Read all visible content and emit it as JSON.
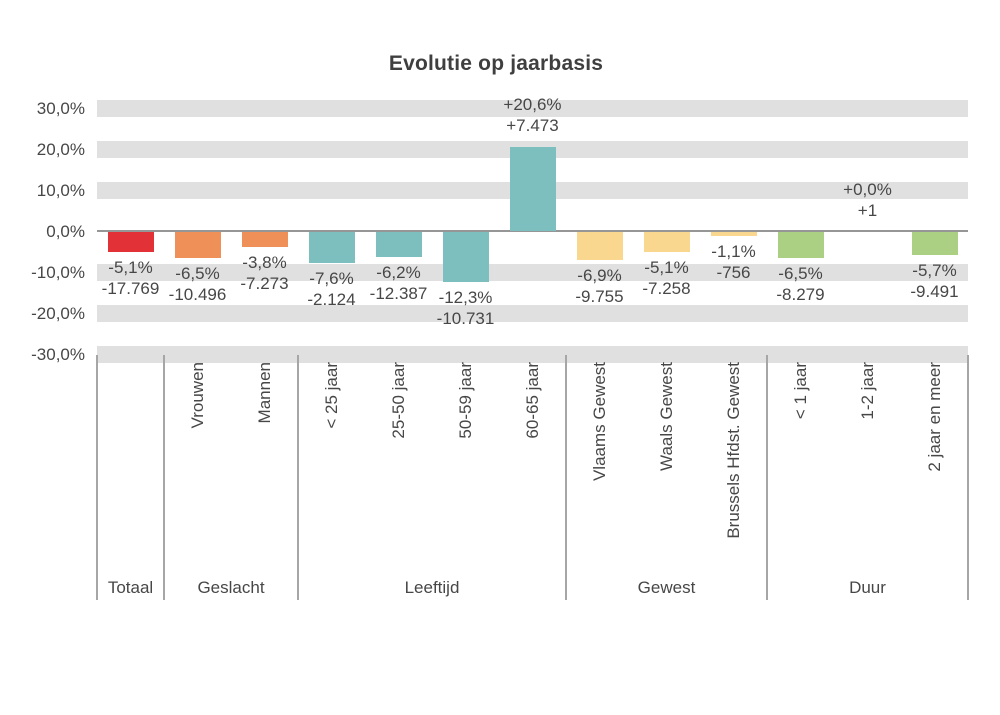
{
  "chart_data": {
    "type": "bar",
    "title": "Evolutie op jaarbasis",
    "xlabel": "",
    "ylabel": "",
    "ylim": [
      -30,
      30
    ],
    "grid": "horizontal-gray-bands-every-10pct",
    "legend": "none",
    "value_label_format": "percent change (NL comma decimal) over absolute change (NL dot thousands)",
    "ytick_values": [
      30,
      20,
      10,
      0,
      -10,
      -20,
      -30
    ],
    "ytick_labels": [
      "30,0%",
      "20,0%",
      "10,0%",
      "0,0%",
      "-10,0%",
      "-20,0%",
      "-30,0%"
    ],
    "groups": [
      {
        "label": "Totaal",
        "bars": [
          {
            "category": "Totaal",
            "axis_label": "",
            "pct": -5.1,
            "abs": -17769,
            "pct_label": "-5,1%",
            "abs_label": "-17.769",
            "color": "red"
          }
        ]
      },
      {
        "label": "Geslacht",
        "bars": [
          {
            "category": "Vrouwen",
            "axis_label": "Vrouwen",
            "pct": -6.5,
            "abs": -10496,
            "pct_label": "-6,5%",
            "abs_label": "-10.496",
            "color": "orange"
          },
          {
            "category": "Mannen",
            "axis_label": "Mannen",
            "pct": -3.8,
            "abs": -7273,
            "pct_label": "-3,8%",
            "abs_label": "-7.273",
            "color": "orange"
          }
        ]
      },
      {
        "label": "Leeftijd",
        "bars": [
          {
            "category": "< 25 jaar",
            "axis_label": "< 25 jaar",
            "pct": -7.6,
            "abs": -2124,
            "pct_label": "-7,6%",
            "abs_label": "-2.124",
            "color": "teal"
          },
          {
            "category": "25-50 jaar",
            "axis_label": "25-50 jaar",
            "pct": -6.2,
            "abs": -12387,
            "pct_label": "-6,2%",
            "abs_label": "-12.387",
            "color": "teal"
          },
          {
            "category": "50-59 jaar",
            "axis_label": "50-59 jaar",
            "pct": -12.3,
            "abs": -10731,
            "pct_label": "-12,3%",
            "abs_label": "-10.731",
            "color": "teal"
          },
          {
            "category": "60-65 jaar",
            "axis_label": "60-65 jaar",
            "pct": 20.6,
            "abs": 7473,
            "pct_label": "+20,6%",
            "abs_label": "+7.473",
            "color": "teal"
          }
        ]
      },
      {
        "label": "Gewest",
        "bars": [
          {
            "category": "Vlaams Gewest",
            "axis_label": "Vlaams Gewest",
            "pct": -6.9,
            "abs": -9755,
            "pct_label": "-6,9%",
            "abs_label": "-9.755",
            "color": "yellow"
          },
          {
            "category": "Waals Gewest",
            "axis_label": "Waals Gewest",
            "pct": -5.1,
            "abs": -7258,
            "pct_label": "-5,1%",
            "abs_label": "-7.258",
            "color": "yellow"
          },
          {
            "category": "Brussels Hfdst. Gewest",
            "axis_label": "Brussels Hfdst. Gewest",
            "pct": -1.1,
            "abs": -756,
            "pct_label": "-1,1%",
            "abs_label": "-756",
            "color": "yellow"
          }
        ]
      },
      {
        "label": "Duur",
        "bars": [
          {
            "category": "< 1 jaar",
            "axis_label": "< 1 jaar",
            "pct": -6.5,
            "abs": -8279,
            "pct_label": "-6,5%",
            "abs_label": "-8.279",
            "color": "green"
          },
          {
            "category": "1-2 jaar",
            "axis_label": "1-2 jaar",
            "pct": 0.0,
            "abs": 1,
            "pct_label": "+0,0%",
            "abs_label": "+1",
            "color": "green"
          },
          {
            "category": "2 jaar en meer",
            "axis_label": "2 jaar en meer",
            "pct": -5.7,
            "abs": -9491,
            "pct_label": "-5,7%",
            "abs_label": "-9.491",
            "color": "green"
          }
        ]
      }
    ],
    "palette": {
      "red": "#E23237",
      "orange": "#EE9058",
      "teal": "#7DBFBE",
      "yellow": "#FAD78E",
      "green": "#ABD084"
    },
    "band_color": "#E0E0E0",
    "axis_line_color": "#969696",
    "divider_color": "#A6A6A6",
    "text_color": "#474747",
    "title_color": "#3F3F3F"
  }
}
